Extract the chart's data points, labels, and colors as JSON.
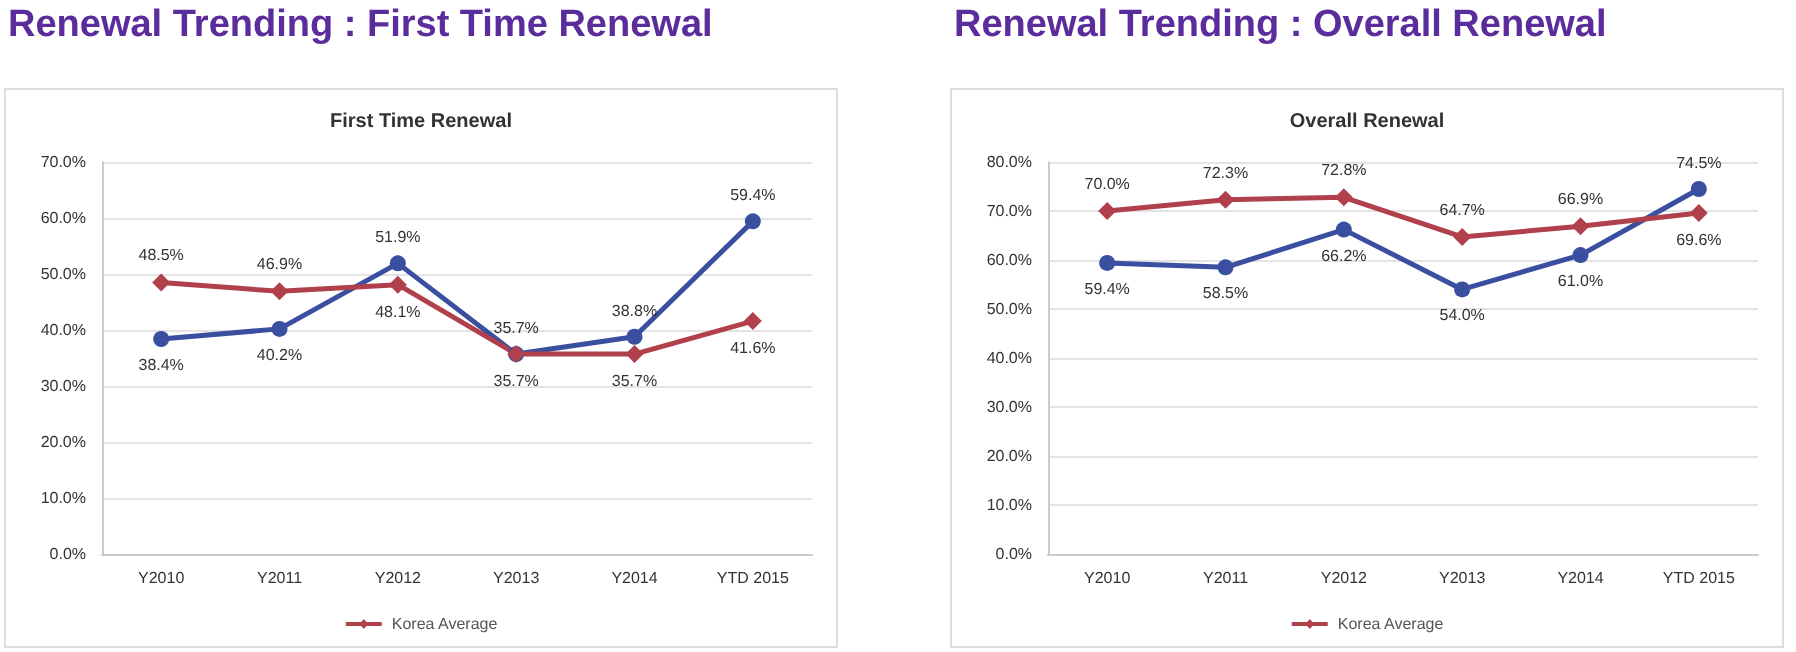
{
  "chart_data": [
    {
      "type": "line",
      "title": "Renewal Trending : First Time Renewal",
      "subtitle": "First Time Renewal",
      "categories": [
        "Y2010",
        "Y2011",
        "Y2012",
        "Y2013",
        "Y2014",
        "YTD 2015"
      ],
      "series": [
        {
          "color": "#3b4fa0",
          "marker": "circle",
          "values": [
            38.4,
            40.2,
            51.9,
            35.7,
            38.8,
            59.4
          ],
          "value_labels": [
            "38.4%",
            "40.2%",
            "51.9%",
            "35.7%",
            "38.8%",
            "59.4%"
          ]
        },
        {
          "name": "Korea Average",
          "color": "#b0404c",
          "marker": "diamond",
          "values": [
            48.5,
            46.9,
            48.1,
            35.7,
            35.7,
            41.6
          ],
          "value_labels": [
            "48.5%",
            "46.9%",
            "48.1%",
            "35.7%",
            "35.7%",
            "41.6%"
          ]
        }
      ],
      "ylim": [
        0,
        70
      ],
      "yticks": [
        {
          "value": 0,
          "label": "0.0%"
        },
        {
          "value": 10,
          "label": "10.0%"
        },
        {
          "value": 20,
          "label": "20.0%"
        },
        {
          "value": 30,
          "label": "30.0%"
        },
        {
          "value": 40,
          "label": "40.0%"
        },
        {
          "value": 50,
          "label": "50.0%"
        },
        {
          "value": 60,
          "label": "60.0%"
        },
        {
          "value": 70,
          "label": "70.0%"
        }
      ],
      "grid": "y",
      "legend": "bottom"
    },
    {
      "type": "line",
      "title": "Renewal Trending : Overall Renewal",
      "subtitle": "Overall Renewal",
      "categories": [
        "Y2010",
        "Y2011",
        "Y2012",
        "Y2013",
        "Y2014",
        "YTD 2015"
      ],
      "series": [
        {
          "color": "#3b4fa0",
          "marker": "circle",
          "values": [
            59.4,
            58.5,
            66.2,
            54.0,
            61.0,
            74.5
          ],
          "value_labels": [
            "59.4%",
            "58.5%",
            "66.2%",
            "54.0%",
            "61.0%",
            "74.5%"
          ]
        },
        {
          "name": "Korea Average",
          "color": "#b0404c",
          "marker": "diamond",
          "values": [
            70.0,
            72.3,
            72.8,
            64.7,
            66.9,
            69.6
          ],
          "value_labels": [
            "70.0%",
            "72.3%",
            "72.8%",
            "64.7%",
            "66.9%",
            "69.6%"
          ]
        }
      ],
      "ylim": [
        0,
        80
      ],
      "yticks": [
        {
          "value": 0,
          "label": "0.0%"
        },
        {
          "value": 10,
          "label": "10.0%"
        },
        {
          "value": 20,
          "label": "20.0%"
        },
        {
          "value": 30,
          "label": "30.0%"
        },
        {
          "value": 40,
          "label": "40.0%"
        },
        {
          "value": 50,
          "label": "50.0%"
        },
        {
          "value": 60,
          "label": "60.0%"
        },
        {
          "value": 70,
          "label": "70.0%"
        },
        {
          "value": 80,
          "label": "80.0%"
        }
      ],
      "grid": "y",
      "legend": "bottom"
    }
  ]
}
